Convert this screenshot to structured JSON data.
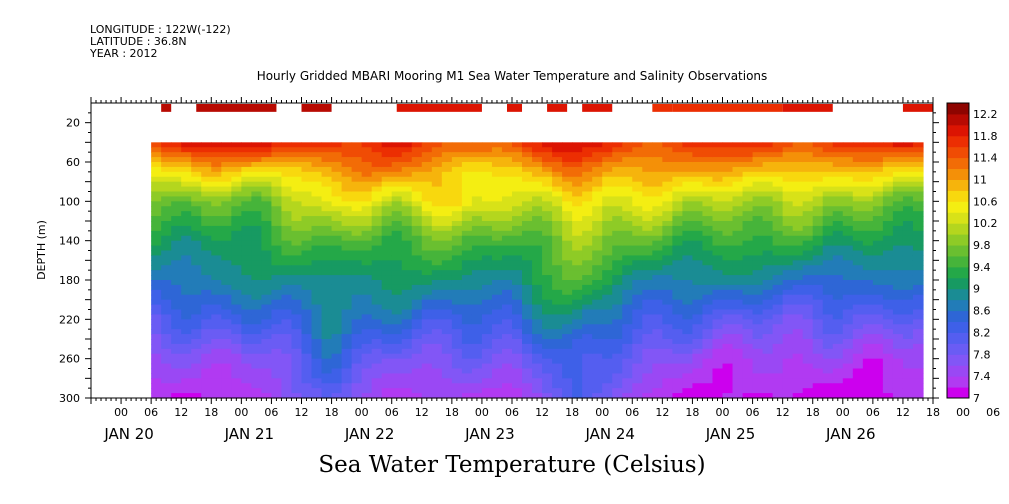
{
  "header": {
    "longitude": "LONGITUDE : 122W(-122)",
    "latitude": "LATITUDE : 36.8N",
    "year": "YEAR : 2012",
    "title": "Hourly Gridded MBARI Mooring M1 Sea Water Temperature and Salinity Observations"
  },
  "footer": {
    "variable_title": "Sea Water Temperature (Celsius)"
  },
  "chart_data": {
    "type": "heatmap",
    "title": "Hourly Gridded MBARI Mooring M1 Sea Water Temperature and Salinity Observations",
    "xlabel": "",
    "ylabel": "DEPTH (m)",
    "units": "Celsius",
    "x_axis": {
      "start": "2012-01-19 18:00",
      "end": "2012-01-26 18:00",
      "hour_ticks": [
        "00",
        "06",
        "12",
        "18",
        "00",
        "06",
        "12",
        "18",
        "00",
        "06",
        "12",
        "18",
        "00",
        "06",
        "12",
        "18",
        "00",
        "06",
        "12",
        "18",
        "00",
        "06",
        "12",
        "18",
        "00",
        "06",
        "12",
        "18",
        "00",
        "06",
        "12",
        "18"
      ],
      "date_labels": [
        "JAN 20",
        "JAN 21",
        "JAN 22",
        "JAN 23",
        "JAN 24",
        "JAN 25",
        "JAN 26"
      ]
    },
    "y_axis": {
      "range": [
        0,
        300
      ],
      "reversed": true,
      "ticks": [
        20,
        60,
        100,
        140,
        180,
        220,
        260,
        300
      ]
    },
    "colorbar": {
      "levels": [
        "7",
        "7.2",
        "7.4",
        "7.6",
        "7.8",
        "8",
        "8.2",
        "8.4",
        "8.6",
        "8.8",
        "9",
        "9.2",
        "9.4",
        "9.6",
        "9.8",
        "10",
        "10.2",
        "10.4",
        "10.6",
        "10.8",
        "11",
        "11.2",
        "11.4",
        "11.6",
        "11.8",
        "12",
        "12.2"
      ],
      "labels": [
        "7",
        "7.4",
        "7.8",
        "8.2",
        "8.6",
        "9",
        "9.4",
        "9.8",
        "10.2",
        "10.6",
        "11",
        "11.4",
        "11.8",
        "12.2"
      ],
      "colors": [
        "#cc00ee",
        "#b13af2",
        "#9a48f4",
        "#8256f6",
        "#6a5cf4",
        "#545ef0",
        "#3e60e8",
        "#2e66d6",
        "#227cb8",
        "#1a8c94",
        "#179a62",
        "#24a848",
        "#46b43a",
        "#6abf30",
        "#8ecb26",
        "#b4d61e",
        "#d8e218",
        "#f4ee12",
        "#f8d80e",
        "#f6b40c",
        "#f49008",
        "#f26c06",
        "#f04c04",
        "#ec2e02",
        "#dc1402",
        "#b80a02",
        "#8e0400"
      ]
    },
    "series": [
      {
        "start": "2012-01-20 06:00",
        "end": "2012-01-26 16:00",
        "depth_top_m": 40,
        "depth_bottom_m": 300,
        "keyframes": [
          {
            "time": "2012-01-20 06:00",
            "d": [
              [
                40,
                11.8
              ],
              [
                70,
                10.5
              ],
              [
                100,
                9.6
              ],
              [
                140,
                9.1
              ],
              [
                180,
                8.7
              ],
              [
                220,
                8.1
              ],
              [
                260,
                7.5
              ],
              [
                300,
                7.2
              ]
            ]
          },
          {
            "time": "2012-01-20 18:00",
            "d": [
              [
                40,
                12.0
              ],
              [
                70,
                10.8
              ],
              [
                100,
                9.7
              ],
              [
                140,
                9.1
              ],
              [
                180,
                8.8
              ],
              [
                220,
                8.2
              ],
              [
                260,
                7.6
              ],
              [
                300,
                7.3
              ]
            ]
          },
          {
            "time": "2012-01-21 06:00",
            "d": [
              [
                40,
                11.9
              ],
              [
                70,
                10.6
              ],
              [
                100,
                9.8
              ],
              [
                140,
                9.3
              ],
              [
                180,
                8.9
              ],
              [
                220,
                8.4
              ],
              [
                260,
                7.7
              ],
              [
                300,
                7.3
              ]
            ]
          },
          {
            "time": "2012-01-21 18:00",
            "d": [
              [
                40,
                11.7
              ],
              [
                70,
                11.0
              ],
              [
                100,
                10.5
              ],
              [
                140,
                9.6
              ],
              [
                180,
                9.0
              ],
              [
                220,
                8.8
              ],
              [
                260,
                8.4
              ],
              [
                300,
                8.1
              ]
            ]
          },
          {
            "time": "2012-01-22 06:00",
            "d": [
              [
                40,
                11.8
              ],
              [
                70,
                11.2
              ],
              [
                100,
                10.2
              ],
              [
                140,
                9.5
              ],
              [
                180,
                9.0
              ],
              [
                220,
                8.5
              ],
              [
                260,
                7.8
              ],
              [
                300,
                7.3
              ]
            ]
          },
          {
            "time": "2012-01-22 18:00",
            "d": [
              [
                40,
                11.4
              ],
              [
                70,
                10.8
              ],
              [
                100,
                10.8
              ],
              [
                140,
                9.6
              ],
              [
                180,
                9.0
              ],
              [
                220,
                8.4
              ],
              [
                260,
                7.8
              ],
              [
                300,
                7.3
              ]
            ]
          },
          {
            "time": "2012-01-23 06:00",
            "d": [
              [
                40,
                11.6
              ],
              [
                70,
                10.5
              ],
              [
                100,
                10.0
              ],
              [
                140,
                9.4
              ],
              [
                180,
                8.9
              ],
              [
                220,
                8.3
              ],
              [
                260,
                7.7
              ],
              [
                300,
                7.3
              ]
            ]
          },
          {
            "time": "2012-01-23 18:00",
            "d": [
              [
                40,
                12.0
              ],
              [
                70,
                11.3
              ],
              [
                100,
                10.6
              ],
              [
                140,
                10.0
              ],
              [
                180,
                9.6
              ],
              [
                220,
                9.0
              ],
              [
                260,
                8.5
              ],
              [
                300,
                8.2
              ]
            ]
          },
          {
            "time": "2012-01-24 06:00",
            "d": [
              [
                40,
                11.6
              ],
              [
                70,
                11.0
              ],
              [
                100,
                10.4
              ],
              [
                140,
                9.6
              ],
              [
                180,
                8.9
              ],
              [
                220,
                8.4
              ],
              [
                260,
                7.8
              ],
              [
                300,
                7.4
              ]
            ]
          },
          {
            "time": "2012-01-24 18:00",
            "d": [
              [
                40,
                11.6
              ],
              [
                70,
                10.9
              ],
              [
                100,
                10.1
              ],
              [
                140,
                9.4
              ],
              [
                180,
                8.8
              ],
              [
                220,
                8.1
              ],
              [
                260,
                7.5
              ],
              [
                300,
                7.2
              ]
            ]
          },
          {
            "time": "2012-01-25 06:00",
            "d": [
              [
                40,
                11.7
              ],
              [
                70,
                10.9
              ],
              [
                100,
                10.1
              ],
              [
                140,
                9.4
              ],
              [
                180,
                8.8
              ],
              [
                220,
                8.0
              ],
              [
                260,
                7.4
              ],
              [
                300,
                7.1
              ]
            ]
          },
          {
            "time": "2012-01-25 18:00",
            "d": [
              [
                40,
                11.6
              ],
              [
                70,
                10.8
              ],
              [
                100,
                10.0
              ],
              [
                140,
                9.3
              ],
              [
                180,
                8.6
              ],
              [
                220,
                7.9
              ],
              [
                260,
                7.4
              ],
              [
                300,
                7.1
              ]
            ]
          },
          {
            "time": "2012-01-26 16:00",
            "d": [
              [
                40,
                11.8
              ],
              [
                70,
                10.6
              ],
              [
                100,
                9.7
              ],
              [
                140,
                9.1
              ],
              [
                180,
                8.6
              ],
              [
                220,
                8.0
              ],
              [
                260,
                7.4
              ],
              [
                300,
                7.2
              ]
            ]
          }
        ]
      }
    ],
    "surface_segments": [
      {
        "start": "2012-01-20 08:00",
        "end": "2012-01-20 10:00",
        "value": 12.0
      },
      {
        "start": "2012-01-20 15:00",
        "end": "2012-01-21 07:00",
        "value": 12.0
      },
      {
        "start": "2012-01-21 12:00",
        "end": "2012-01-21 18:00",
        "value": 12.0
      },
      {
        "start": "2012-01-22 07:00",
        "end": "2012-01-23 00:00",
        "value": 11.9
      },
      {
        "start": "2012-01-23 05:00",
        "end": "2012-01-23 08:00",
        "value": 11.9
      },
      {
        "start": "2012-01-23 13:00",
        "end": "2012-01-23 17:00",
        "value": 11.9
      },
      {
        "start": "2012-01-23 20:00",
        "end": "2012-01-24 02:00",
        "value": 11.9
      },
      {
        "start": "2012-01-24 10:00",
        "end": "2012-01-24 14:00",
        "value": 11.7
      },
      {
        "start": "2012-01-24 14:00",
        "end": "2012-01-25 12:00",
        "value": 11.6
      },
      {
        "start": "2012-01-25 12:00",
        "end": "2012-01-25 22:00",
        "value": 11.8
      },
      {
        "start": "2012-01-26 12:00",
        "end": "2012-01-26 18:00",
        "value": 11.9
      }
    ]
  }
}
